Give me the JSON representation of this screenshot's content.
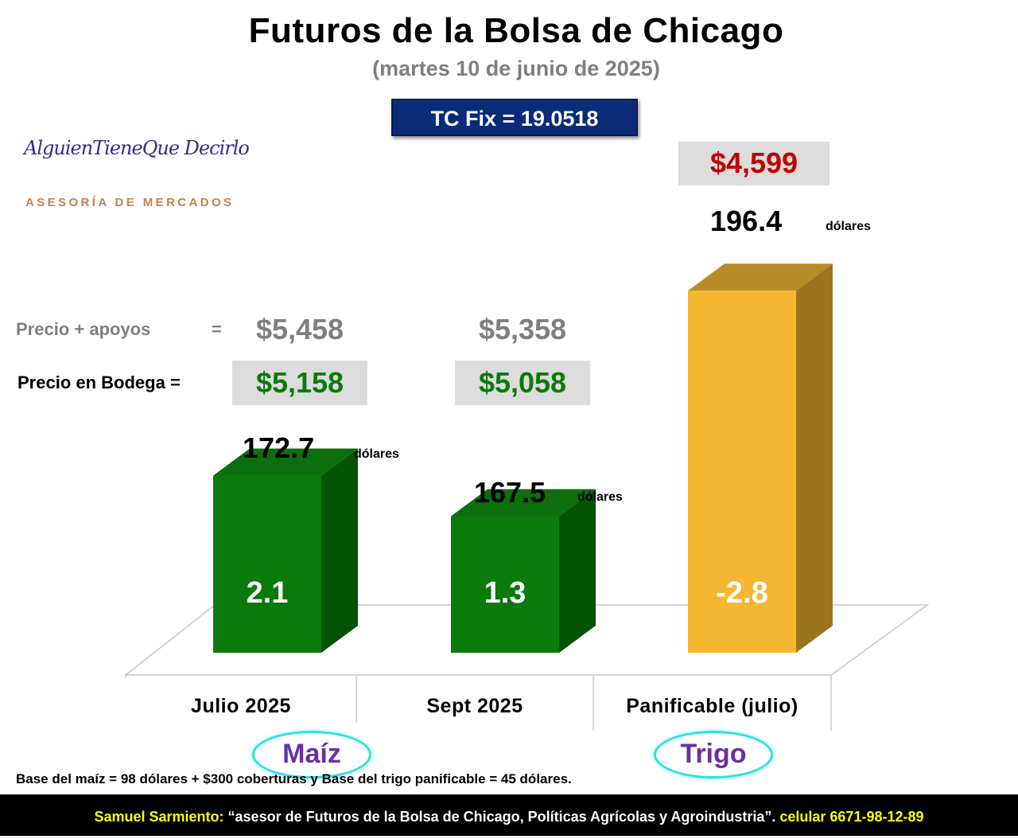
{
  "title": "Futuros de la Bolsa de Chicago",
  "subtitle": "(martes 10 de junio de 2025)",
  "tc_fix": "TC Fix = 19.0518",
  "logo": {
    "script_text": "AlguienTieneQue Decirlo",
    "subtitle": "ASESORÍA DE MERCADOS"
  },
  "price_rows": {
    "apoyos_label": "Precio + apoyos",
    "apoyos_eq": "=",
    "bodega_label": "Precio en Bodega =",
    "julio_apoyos": "$5,458",
    "julio_bodega": "$5,158",
    "sept_apoyos": "$5,358",
    "sept_bodega": "$5,058",
    "trigo_price": "$4,599"
  },
  "unit_label": "dólares",
  "groups": {
    "maiz": "Maíz",
    "trigo": "Trigo"
  },
  "note": "Base del maíz = 98 dólares + $300 coberturas y Base del trigo panificable = 45 dólares.",
  "footer": {
    "name": "Samuel Sarmiento:",
    "quote": " “asesor de Futuros de la Bolsa de Chicago, Políticas Agrícolas y Agroindustria”. ",
    "phone": "celular 6671-98-12-89"
  },
  "colors": {
    "maiz_front": "#0a7a0a",
    "maiz_top": "#0c6e0c",
    "maiz_side": "#045204",
    "trigo_front": "#f5b731",
    "trigo_top": "#b88c24",
    "trigo_side": "#9c7420"
  },
  "chart_data": {
    "type": "bar",
    "title": "Futuros de la Bolsa de Chicago",
    "categories": [
      "Julio 2025",
      "Sept 2025",
      "Panificable (julio)"
    ],
    "series": [
      {
        "values": [
          172.7,
          167.5,
          196.4
        ],
        "changes": [
          2.1,
          1.3,
          -2.8
        ],
        "value_labels": [
          "172.7",
          "167.5",
          "196.4"
        ],
        "change_labels": [
          "2.1",
          "1.3",
          "-2.8"
        ]
      }
    ],
    "ylim": [
      150,
      200
    ],
    "grid": false,
    "legend": "none"
  }
}
